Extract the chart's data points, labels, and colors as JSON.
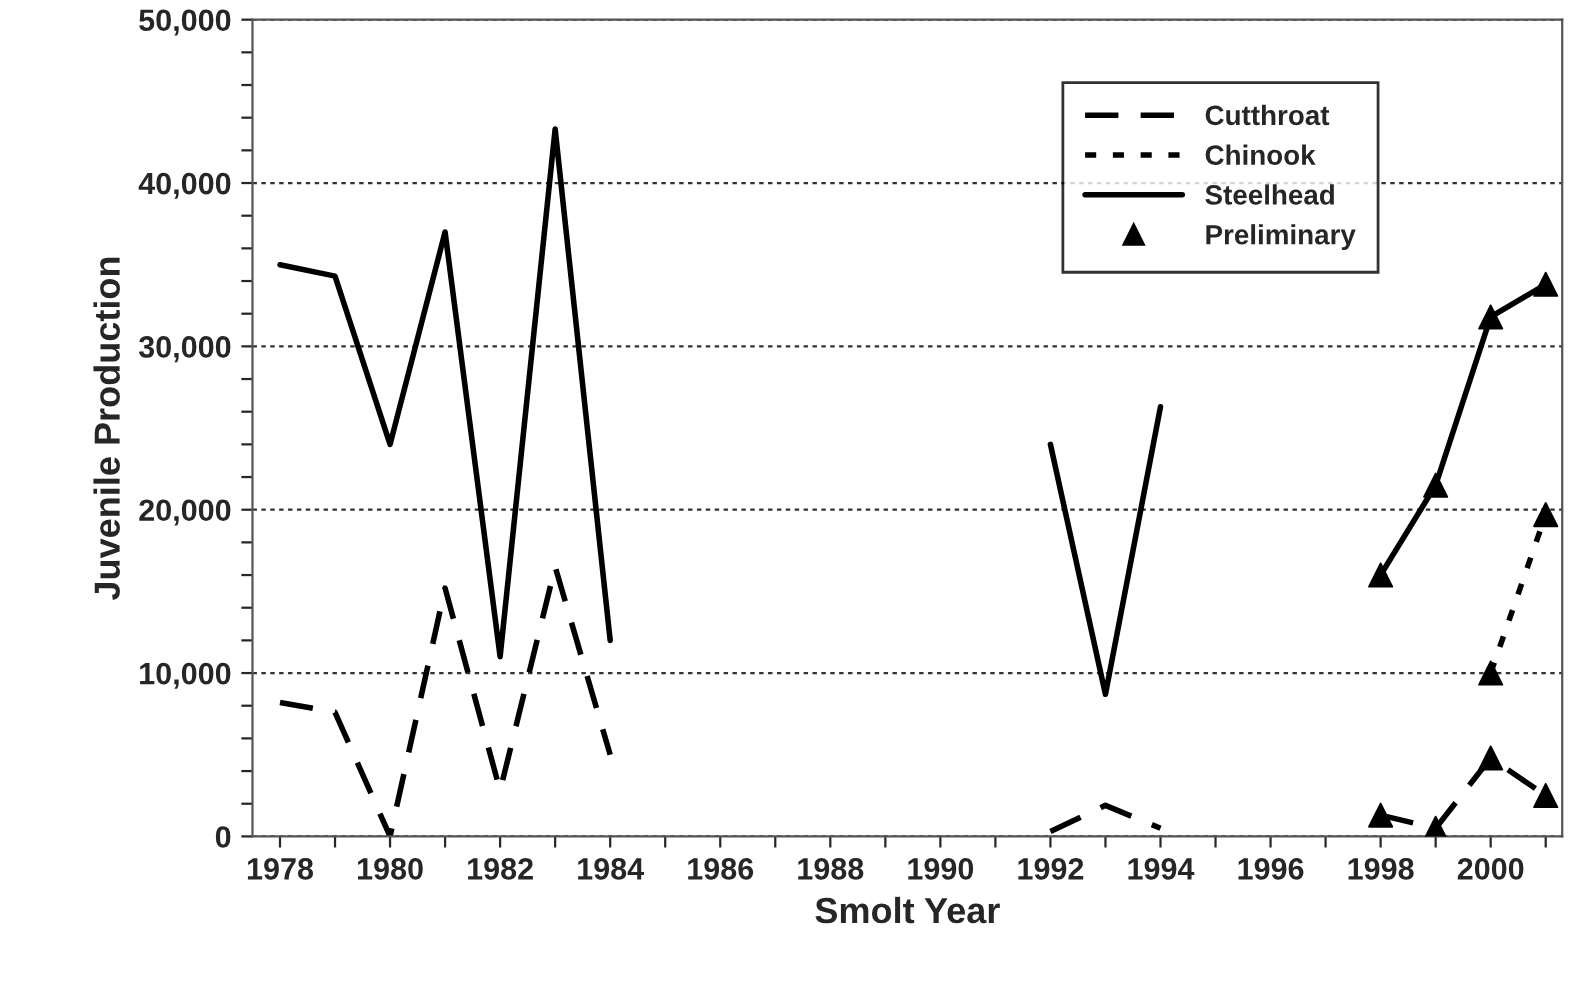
{
  "chart_data": {
    "type": "line",
    "xlabel": "Smolt Year",
    "ylabel": "Juvenile Production",
    "x": [
      1978,
      1979,
      1980,
      1981,
      1982,
      1983,
      1984,
      1985,
      1986,
      1987,
      1988,
      1989,
      1990,
      1991,
      1992,
      1993,
      1994,
      1995,
      1996,
      1997,
      1998,
      1999,
      2000,
      2001
    ],
    "series": [
      {
        "name": "Cutthroat",
        "color": "#000000",
        "line_style": "dashed",
        "values": [
          8200,
          7600,
          0,
          15200,
          2800,
          16500,
          5000,
          null,
          null,
          null,
          null,
          null,
          null,
          null,
          300,
          1900,
          500,
          null,
          null,
          null,
          1300,
          500,
          4800,
          2500
        ]
      },
      {
        "name": "Chinook",
        "color": "#000000",
        "line_style": "dotted",
        "values": [
          null,
          null,
          null,
          null,
          null,
          null,
          null,
          null,
          null,
          null,
          null,
          null,
          null,
          null,
          null,
          null,
          null,
          null,
          null,
          null,
          null,
          null,
          10000,
          19700
        ]
      },
      {
        "name": "Steelhead",
        "color": "#000000",
        "line_style": "solid",
        "values": [
          35000,
          34300,
          24000,
          37000,
          11000,
          43300,
          12000,
          null,
          null,
          null,
          null,
          null,
          null,
          null,
          24000,
          8700,
          26300,
          null,
          null,
          null,
          16000,
          21500,
          31800,
          33800
        ]
      },
      {
        "name": "Preliminary",
        "type": "scatter",
        "color": "#000000",
        "marker": "triangle",
        "x": [
          1998,
          1999,
          2000,
          2001,
          1998,
          1999,
          2000,
          2001,
          2000,
          2001
        ],
        "values": [
          16000,
          21500,
          31800,
          33800,
          1300,
          500,
          4800,
          2500,
          10000,
          19700
        ]
      }
    ],
    "xlim": [
      1977.5,
      2001.3
    ],
    "ylim": [
      0,
      50000
    ],
    "xticks": [
      1978,
      {
        "value": 1979,
        "label": null
      },
      1980,
      {
        "value": 1981,
        "label": null
      },
      1982,
      {
        "value": 1983,
        "label": null
      },
      1984,
      {
        "value": 1985,
        "label": null
      },
      1986,
      {
        "value": 1987,
        "label": null
      },
      1988,
      {
        "value": 1989,
        "label": null
      },
      1990,
      {
        "value": 1991,
        "label": null
      },
      1992,
      {
        "value": 1993,
        "label": null
      },
      1994,
      {
        "value": 1995,
        "label": null
      },
      1996,
      {
        "value": 1997,
        "label": null
      },
      1998,
      {
        "value": 1999,
        "label": null
      },
      2000,
      {
        "value": 2001,
        "label": null
      }
    ],
    "yticks": [
      {
        "value": 0,
        "label": "0"
      },
      {
        "value": 2000,
        "label": null
      },
      {
        "value": 4000,
        "label": null
      },
      {
        "value": 6000,
        "label": null
      },
      {
        "value": 8000,
        "label": null
      },
      {
        "value": 10000,
        "label": "10,000"
      },
      {
        "value": 12000,
        "label": null
      },
      {
        "value": 14000,
        "label": null
      },
      {
        "value": 16000,
        "label": null
      },
      {
        "value": 18000,
        "label": null
      },
      {
        "value": 20000,
        "label": "20,000"
      },
      {
        "value": 22000,
        "label": null
      },
      {
        "value": 24000,
        "label": null
      },
      {
        "value": 26000,
        "label": null
      },
      {
        "value": 28000,
        "label": null
      },
      {
        "value": 30000,
        "label": "30,000"
      },
      {
        "value": 32000,
        "label": null
      },
      {
        "value": 34000,
        "label": null
      },
      {
        "value": 36000,
        "label": null
      },
      {
        "value": 38000,
        "label": null
      },
      {
        "value": 40000,
        "label": "40,000"
      },
      {
        "value": 42000,
        "label": null
      },
      {
        "value": 44000,
        "label": null
      },
      {
        "value": 46000,
        "label": null
      },
      {
        "value": 48000,
        "label": null
      },
      {
        "value": 50000,
        "label": "50,000"
      }
    ],
    "grid": "y",
    "legend": "top right"
  }
}
